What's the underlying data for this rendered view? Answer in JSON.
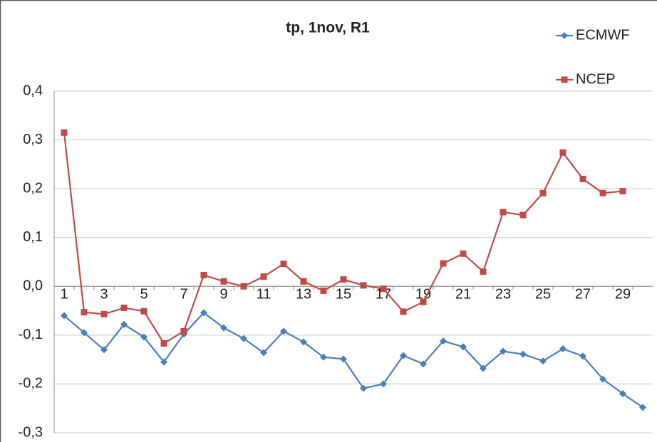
{
  "chart_data": {
    "type": "line",
    "title": "tp, 1nov, R1",
    "categories": [
      "1",
      null,
      "3",
      null,
      "5",
      null,
      "7",
      null,
      "9",
      null,
      "11",
      null,
      "13",
      null,
      "15",
      null,
      "17",
      null,
      "19",
      null,
      "21",
      null,
      "23",
      null,
      "25",
      null,
      "27",
      null,
      "29",
      null
    ],
    "series": [
      {
        "name": "ECMWF",
        "color": "#4a7ebb",
        "marker": "diamond",
        "values": [
          -0.06,
          -0.095,
          -0.13,
          -0.078,
          -0.104,
          -0.155,
          -0.098,
          -0.054,
          -0.085,
          -0.107,
          -0.136,
          -0.092,
          -0.114,
          -0.145,
          -0.149,
          -0.209,
          -0.2,
          -0.142,
          -0.159,
          -0.112,
          -0.124,
          -0.168,
          -0.133,
          -0.139,
          -0.153,
          -0.128,
          -0.143,
          -0.19,
          -0.22,
          -0.248
        ]
      },
      {
        "name": "NCEP",
        "color": "#be4b48",
        "marker": "square",
        "values": [
          0.315,
          -0.053,
          -0.057,
          -0.044,
          -0.051,
          -0.117,
          -0.092,
          0.023,
          0.01,
          0.0,
          0.02,
          0.046,
          0.01,
          -0.009,
          0.014,
          0.002,
          -0.005,
          -0.052,
          -0.032,
          0.047,
          0.067,
          0.03,
          0.152,
          0.146,
          0.191,
          0.274,
          0.22,
          0.191,
          0.195,
          null
        ]
      }
    ],
    "ylim": [
      -0.3,
      0.4
    ],
    "yticks": [
      {
        "value": -0.3,
        "label": "-0,3"
      },
      {
        "value": -0.2,
        "label": "-0,2"
      },
      {
        "value": -0.1,
        "label": "-0,1"
      },
      {
        "value": 0,
        "label": "0,0"
      },
      {
        "value": 0.1,
        "label": "0,1"
      },
      {
        "value": 0.2,
        "label": "0,2"
      },
      {
        "value": 0.3,
        "label": "0,3"
      },
      {
        "value": 0.4,
        "label": "0,4"
      }
    ],
    "grid": true,
    "legend": "top-right"
  }
}
